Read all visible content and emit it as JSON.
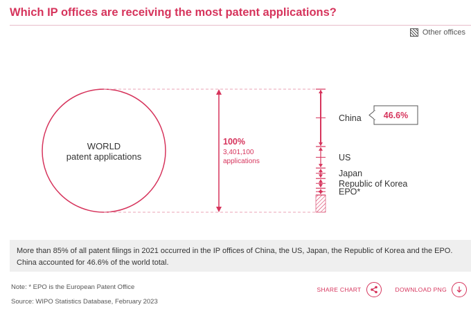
{
  "title": "Which IP offices are receiving the most patent applications?",
  "legend": {
    "label": "Other offices",
    "icon": "hatched-square-icon"
  },
  "colors": {
    "accent": "#d6345c",
    "accent_light": "#e8a3b6",
    "text": "#333333",
    "muted": "#555555"
  },
  "chart_data": {
    "type": "bar",
    "total": {
      "line1": "WORLD",
      "line2": "patent applications",
      "percent_label": "100%",
      "value_label": "3,401,100",
      "unit_label": "applications",
      "value": 3401100
    },
    "categories": [
      "China",
      "US",
      "Japan",
      "Republic of Korea",
      "EPO*"
    ],
    "series": [
      {
        "values": [
          46.6,
          17.5,
          8.5,
          7.9,
          5.5
        ]
      }
    ],
    "highlight": {
      "category": "China",
      "label": "46.6%"
    },
    "other_share": 14.0
  },
  "summary": {
    "line1": "More than 85% of all patent filings in 2021 occurred in the IP offices of China, the US, Japan, the Republic of Korea and the EPO.",
    "line2": "China accounted for 46.6% of the world total."
  },
  "note": "Note: * EPO is the European Patent Office",
  "source": "Source: WIPO Statistics Database, February 2023",
  "actions": {
    "share": {
      "label": "SHARE CHART",
      "icon": "share-icon"
    },
    "download": {
      "label": "DOWNLOAD PNG",
      "icon": "download-icon"
    }
  }
}
